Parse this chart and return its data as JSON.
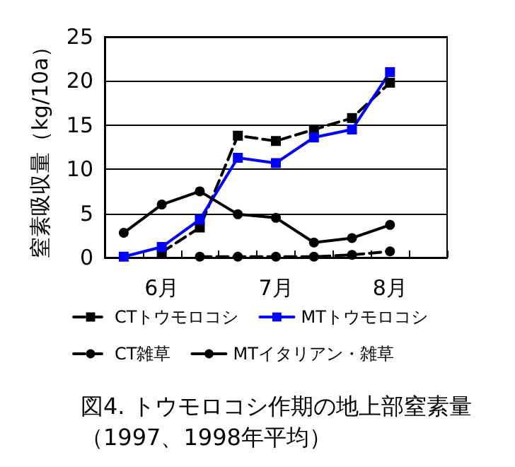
{
  "chart_data": {
    "type": "line",
    "title": "図4. トウモロコシ作期の地上部窒素量",
    "subtitle": "（1997、1998年平均）",
    "ylabel": "窒素吸収量（kg/10a）",
    "categories": [
      null,
      "6月",
      null,
      null,
      "7月",
      null,
      null,
      "8月",
      null
    ],
    "series": [
      {
        "name": "CTトウモロコシ",
        "color": "#000000",
        "line_style": "dashed",
        "marker": "square",
        "values": [
          null,
          0.6,
          3.4,
          13.8,
          13.2,
          14.5,
          15.8,
          19.8,
          null
        ]
      },
      {
        "name": "MTトウモロコシ",
        "color": "#0000ff",
        "line_style": "solid",
        "marker": "square",
        "values": [
          0.1,
          1.2,
          4.3,
          11.3,
          10.7,
          13.6,
          14.5,
          21.0,
          null
        ]
      },
      {
        "name": "CT雑草",
        "color": "#000000",
        "line_style": "dashed",
        "marker": "circle",
        "values": [
          null,
          null,
          0.1,
          0.1,
          0.1,
          0.1,
          0.3,
          0.7,
          null
        ]
      },
      {
        "name": "MTイタリアン・雑草",
        "color": "#000000",
        "line_style": "solid",
        "marker": "circle",
        "values": [
          2.8,
          6.0,
          7.5,
          4.9,
          4.5,
          1.7,
          2.2,
          3.7,
          null
        ]
      }
    ],
    "ylim": [
      0,
      25
    ],
    "yticks": [
      0,
      5,
      10,
      15,
      20,
      25
    ],
    "grid": "y",
    "legend": "bottom"
  }
}
